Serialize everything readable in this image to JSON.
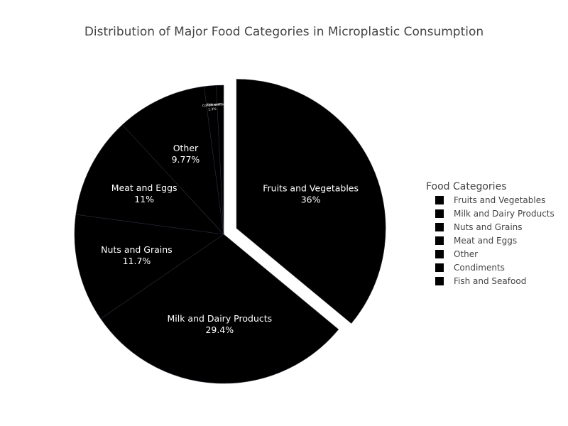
{
  "chart_data": {
    "type": "pie",
    "title": "Distribution of Major Food Categories in Microplastic Consumption",
    "legend_title": "Food Categories",
    "legend_position": "right",
    "categories": [
      "Fruits and Vegetables",
      "Milk and Dairy Products",
      "Nuts and Grains",
      "Meat and Eggs",
      "Other",
      "Condiments",
      "Fish and Seafood"
    ],
    "values": [
      36,
      29.4,
      11.7,
      11,
      9.77,
      1.3,
      0.8
    ],
    "labels": [
      "36%",
      "29.4%",
      "11.7%",
      "11%",
      "9.77%",
      "1.3%",
      ""
    ],
    "colors": [
      "#000000",
      "#000000",
      "#000000",
      "#000000",
      "#000000",
      "#000000",
      "#000000"
    ],
    "pulled_slice": "Fruits and Vegetables",
    "direction": "clockwise",
    "start_angle": "top"
  }
}
